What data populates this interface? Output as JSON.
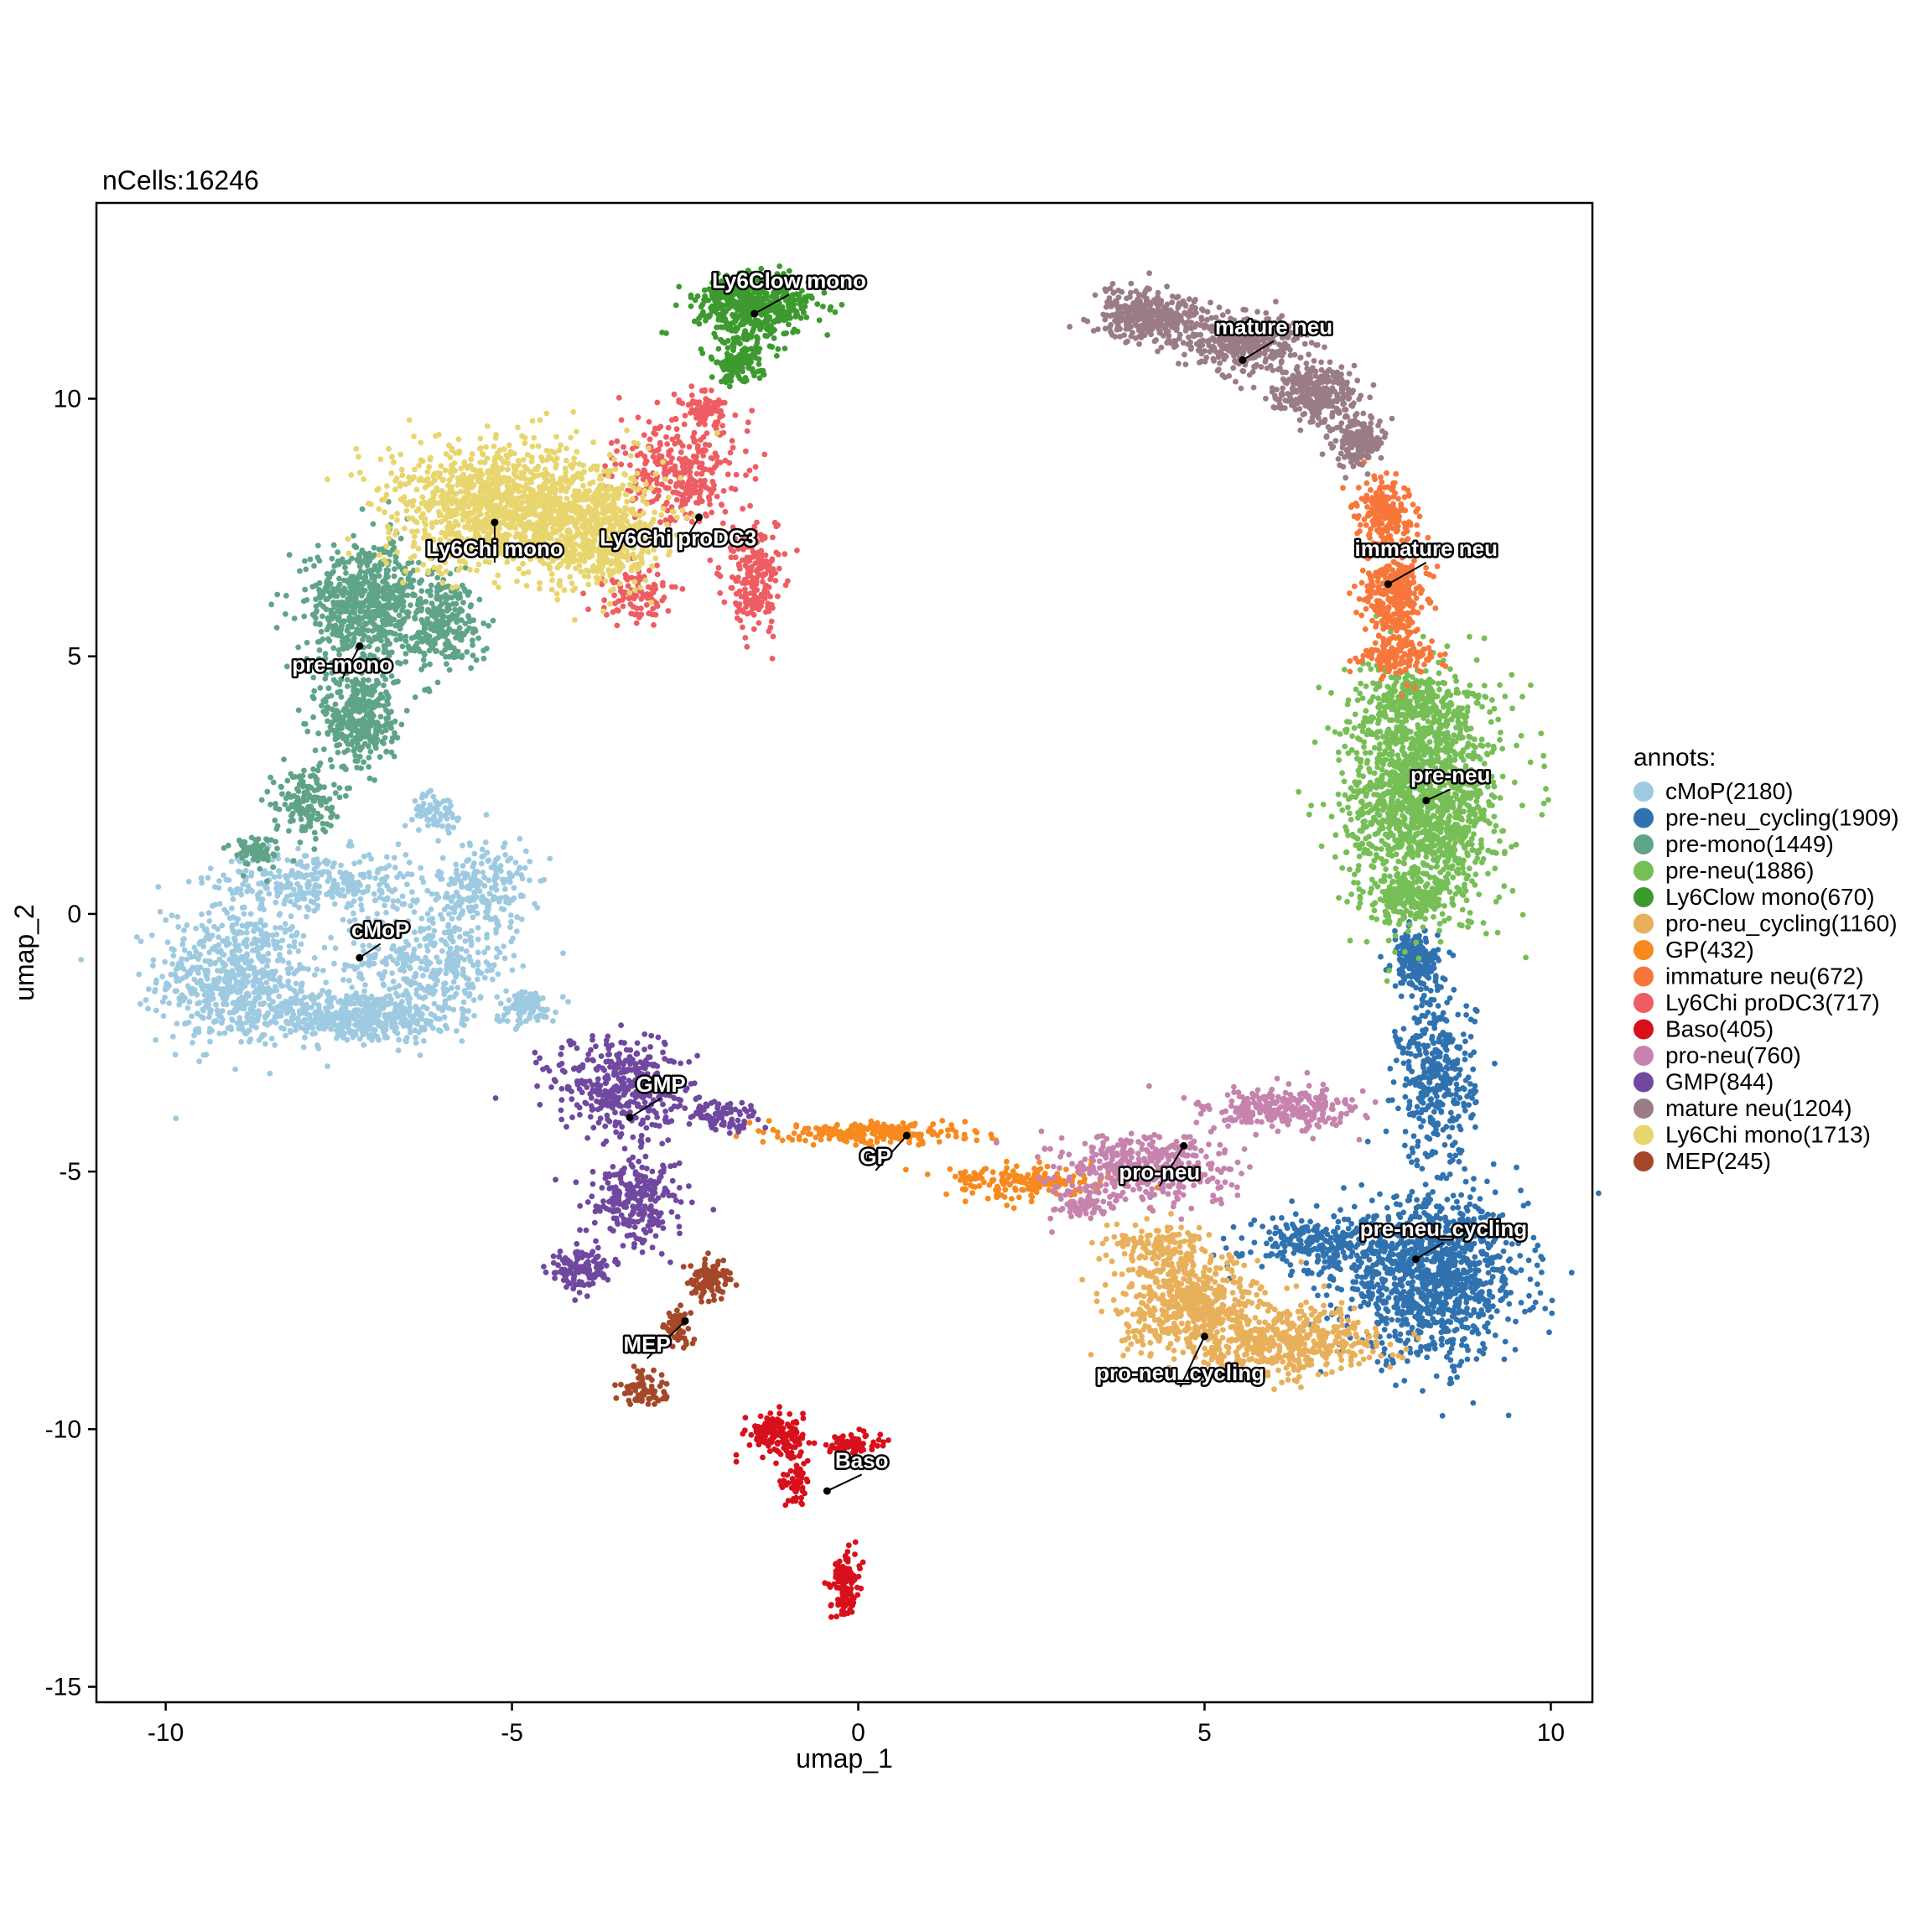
{
  "chart_data": {
    "type": "scatter",
    "title": "nCells:16246",
    "xlabel": "umap_1",
    "ylabel": "umap_2",
    "xlim": [
      -11,
      10.6
    ],
    "ylim": [
      -15.3,
      13.8
    ],
    "xticks": [
      -10,
      -5,
      0,
      5,
      10
    ],
    "yticks": [
      -15,
      -10,
      -5,
      0,
      5,
      10
    ],
    "legend": {
      "title": "annots:",
      "placement": "right"
    },
    "series": [
      {
        "key": "cMoP",
        "name": "cMoP(2180)",
        "count": 2180,
        "color": "#9ECAE1",
        "label": "cMoP",
        "center": [
          -7.2,
          -0.85
        ],
        "label_pos": [
          -6.9,
          -0.45
        ],
        "blobs": [
          {
            "cx": -9.0,
            "cy": -1.2,
            "rx": 1.0,
            "ry": 1.2,
            "w": 0.28
          },
          {
            "cx": -7.3,
            "cy": -2.0,
            "rx": 1.3,
            "ry": 0.45,
            "w": 0.22
          },
          {
            "cx": -6.2,
            "cy": -1.0,
            "rx": 1.1,
            "ry": 1.0,
            "w": 0.17
          },
          {
            "cx": -7.8,
            "cy": 0.6,
            "rx": 1.4,
            "ry": 0.55,
            "w": 0.15
          },
          {
            "cx": -5.4,
            "cy": 0.5,
            "rx": 0.6,
            "ry": 0.9,
            "w": 0.1
          },
          {
            "cx": -4.8,
            "cy": -1.8,
            "rx": 0.4,
            "ry": 0.3,
            "w": 0.05
          },
          {
            "cx": -6.1,
            "cy": 2.0,
            "rx": 0.3,
            "ry": 0.3,
            "w": 0.03
          }
        ]
      },
      {
        "key": "pre-neu_cycling",
        "name": "pre-neu_cycling(1909)",
        "count": 1909,
        "color": "#3072B0",
        "label": "pre-neu_cycling",
        "center": [
          8.05,
          -6.7
        ],
        "label_pos": [
          8.45,
          -6.25
        ],
        "blobs": [
          {
            "cx": 8.3,
            "cy": -7.1,
            "rx": 1.2,
            "ry": 1.4,
            "w": 0.55
          },
          {
            "cx": 6.8,
            "cy": -6.4,
            "rx": 1.1,
            "ry": 0.5,
            "w": 0.15
          },
          {
            "cx": 8.35,
            "cy": -3.2,
            "rx": 0.5,
            "ry": 1.5,
            "w": 0.2
          },
          {
            "cx": 8.05,
            "cy": -0.9,
            "rx": 0.3,
            "ry": 0.5,
            "w": 0.1
          }
        ]
      },
      {
        "key": "pre-mono",
        "name": "pre-mono(1449)",
        "count": 1449,
        "color": "#5FA488",
        "label": "pre-mono",
        "center": [
          -7.2,
          5.2
        ],
        "label_pos": [
          -7.45,
          4.7
        ],
        "blobs": [
          {
            "cx": -7.1,
            "cy": 6.0,
            "rx": 0.8,
            "ry": 1.1,
            "w": 0.45
          },
          {
            "cx": -7.2,
            "cy": 3.8,
            "rx": 0.5,
            "ry": 0.9,
            "w": 0.25
          },
          {
            "cx": -8.0,
            "cy": 2.2,
            "rx": 0.4,
            "ry": 0.6,
            "w": 0.1
          },
          {
            "cx": -6.0,
            "cy": 5.7,
            "rx": 0.5,
            "ry": 0.8,
            "w": 0.15
          },
          {
            "cx": -8.7,
            "cy": 1.2,
            "rx": 0.3,
            "ry": 0.3,
            "w": 0.05
          }
        ]
      },
      {
        "key": "pre-neu",
        "name": "pre-neu(1886)",
        "count": 1886,
        "color": "#76BE56",
        "label": "pre-neu",
        "center": [
          8.2,
          2.2
        ],
        "label_pos": [
          8.55,
          2.55
        ],
        "blobs": [
          {
            "cx": 8.15,
            "cy": 2.3,
            "rx": 1.0,
            "ry": 2.0,
            "w": 0.8
          },
          {
            "cx": 8.0,
            "cy": 4.2,
            "rx": 0.6,
            "ry": 0.5,
            "w": 0.1
          },
          {
            "cx": 8.0,
            "cy": 0.3,
            "rx": 0.6,
            "ry": 0.4,
            "w": 0.1
          }
        ]
      },
      {
        "key": "Ly6Clow mono",
        "name": "Ly6Clow mono(670)",
        "count": 670,
        "color": "#3D9A2F",
        "label": "Ly6Clow mono",
        "center": [
          -1.5,
          11.65
        ],
        "label_pos": [
          -1.0,
          12.15
        ],
        "blobs": [
          {
            "cx": -1.5,
            "cy": 11.8,
            "rx": 0.75,
            "ry": 0.6,
            "w": 0.8
          },
          {
            "cx": -1.75,
            "cy": 10.7,
            "rx": 0.35,
            "ry": 0.35,
            "w": 0.2
          }
        ]
      },
      {
        "key": "pro-neu_cycling",
        "name": "pro-neu_cycling(1160)",
        "count": 1160,
        "color": "#E8B05A",
        "label": "pro-neu_cycling",
        "center": [
          5.0,
          -8.2
        ],
        "label_pos": [
          4.65,
          -9.05
        ],
        "blobs": [
          {
            "cx": 4.8,
            "cy": -7.6,
            "rx": 0.9,
            "ry": 0.9,
            "w": 0.5
          },
          {
            "cx": 6.2,
            "cy": -8.3,
            "rx": 1.2,
            "ry": 0.6,
            "w": 0.4
          },
          {
            "cx": 4.3,
            "cy": -6.4,
            "rx": 0.6,
            "ry": 0.4,
            "w": 0.1
          }
        ]
      },
      {
        "key": "GP",
        "name": "GP(432)",
        "count": 432,
        "color": "#F78A1E",
        "label": "GP",
        "center": [
          0.7,
          -4.3
        ],
        "label_pos": [
          0.25,
          -4.85
        ],
        "blobs": [
          {
            "cx": 0.3,
            "cy": -4.25,
            "rx": 1.2,
            "ry": 0.18,
            "w": 0.55
          },
          {
            "cx": 2.5,
            "cy": -5.2,
            "rx": 1.1,
            "ry": 0.3,
            "w": 0.45
          }
        ]
      },
      {
        "key": "immature neu",
        "name": "immature neu(672)",
        "count": 672,
        "color": "#F7773B",
        "label": "immature neu",
        "center": [
          7.65,
          6.4
        ],
        "label_pos": [
          8.2,
          6.95
        ],
        "blobs": [
          {
            "cx": 7.6,
            "cy": 7.8,
            "rx": 0.35,
            "ry": 0.6,
            "w": 0.3
          },
          {
            "cx": 7.75,
            "cy": 6.2,
            "rx": 0.4,
            "ry": 0.9,
            "w": 0.5
          },
          {
            "cx": 7.8,
            "cy": 5.0,
            "rx": 0.5,
            "ry": 0.3,
            "w": 0.2
          }
        ]
      },
      {
        "key": "Ly6Chi proDC3",
        "name": "Ly6Chi proDC3(717)",
        "count": 717,
        "color": "#EE5D62",
        "label": "Ly6Chi proDC3",
        "center": [
          -2.3,
          7.7
        ],
        "label_pos": [
          -2.6,
          7.15
        ],
        "blobs": [
          {
            "cx": -2.6,
            "cy": 8.6,
            "rx": 0.8,
            "ry": 0.9,
            "w": 0.45
          },
          {
            "cx": -1.5,
            "cy": 6.5,
            "rx": 0.4,
            "ry": 0.9,
            "w": 0.3
          },
          {
            "cx": -3.2,
            "cy": 6.2,
            "rx": 0.4,
            "ry": 0.5,
            "w": 0.15
          },
          {
            "cx": -2.2,
            "cy": 9.8,
            "rx": 0.3,
            "ry": 0.3,
            "w": 0.1
          }
        ]
      },
      {
        "key": "Baso",
        "name": "Baso(405)",
        "count": 405,
        "color": "#D7101C",
        "label": "Baso",
        "center": [
          -0.45,
          -11.2
        ],
        "label_pos": [
          0.05,
          -10.75
        ],
        "blobs": [
          {
            "cx": -1.2,
            "cy": -10.1,
            "rx": 0.4,
            "ry": 0.35,
            "w": 0.35
          },
          {
            "cx": -0.1,
            "cy": -10.3,
            "rx": 0.35,
            "ry": 0.2,
            "w": 0.2
          },
          {
            "cx": -0.2,
            "cy": -13.0,
            "rx": 0.18,
            "ry": 0.55,
            "w": 0.3
          },
          {
            "cx": -0.9,
            "cy": -11.0,
            "rx": 0.2,
            "ry": 0.5,
            "w": 0.15
          }
        ]
      },
      {
        "key": "pro-neu",
        "name": "pro-neu(760)",
        "count": 760,
        "color": "#C583AE",
        "label": "pro-neu",
        "center": [
          4.7,
          -4.5
        ],
        "label_pos": [
          4.35,
          -5.15
        ],
        "blobs": [
          {
            "cx": 4.2,
            "cy": -4.9,
            "rx": 1.1,
            "ry": 0.6,
            "w": 0.55
          },
          {
            "cx": 6.1,
            "cy": -3.8,
            "rx": 1.0,
            "ry": 0.4,
            "w": 0.35
          },
          {
            "cx": 3.2,
            "cy": -5.7,
            "rx": 0.4,
            "ry": 0.3,
            "w": 0.1
          }
        ]
      },
      {
        "key": "GMP",
        "name": "GMP(844)",
        "count": 844,
        "color": "#7048A0",
        "label": "GMP",
        "center": [
          -3.3,
          -3.95
        ],
        "label_pos": [
          -2.85,
          -3.45
        ],
        "blobs": [
          {
            "cx": -3.4,
            "cy": -3.4,
            "rx": 0.9,
            "ry": 0.9,
            "w": 0.45
          },
          {
            "cx": -3.2,
            "cy": -5.6,
            "rx": 0.6,
            "ry": 0.8,
            "w": 0.3
          },
          {
            "cx": -4.0,
            "cy": -6.9,
            "rx": 0.4,
            "ry": 0.4,
            "w": 0.15
          },
          {
            "cx": -2.0,
            "cy": -3.9,
            "rx": 0.5,
            "ry": 0.3,
            "w": 0.1
          }
        ]
      },
      {
        "key": "mature neu",
        "name": "mature neu(1204)",
        "count": 1204,
        "color": "#9A7D84",
        "label": "mature neu",
        "center": [
          5.55,
          10.75
        ],
        "label_pos": [
          6.0,
          11.25
        ],
        "blobs": [
          {
            "cx": 4.2,
            "cy": 11.6,
            "rx": 0.7,
            "ry": 0.45,
            "w": 0.3
          },
          {
            "cx": 5.6,
            "cy": 11.1,
            "rx": 0.8,
            "ry": 0.5,
            "w": 0.3
          },
          {
            "cx": 6.6,
            "cy": 10.1,
            "rx": 0.55,
            "ry": 0.45,
            "w": 0.25
          },
          {
            "cx": 7.2,
            "cy": 9.2,
            "rx": 0.35,
            "ry": 0.45,
            "w": 0.15
          }
        ]
      },
      {
        "key": "Ly6Chi mono",
        "name": "Ly6Chi mono(1713)",
        "count": 1713,
        "color": "#E8D56D",
        "label": "Ly6Chi mono",
        "center": [
          -5.25,
          7.6
        ],
        "label_pos": [
          -5.25,
          6.95
        ],
        "blobs": [
          {
            "cx": -5.0,
            "cy": 7.9,
            "rx": 1.6,
            "ry": 1.1,
            "w": 0.75
          },
          {
            "cx": -3.7,
            "cy": 7.3,
            "rx": 0.7,
            "ry": 0.9,
            "w": 0.25
          }
        ]
      },
      {
        "key": "MEP",
        "name": "MEP(245)",
        "count": 245,
        "color": "#A5482A",
        "label": "MEP",
        "center": [
          -2.5,
          -7.9
        ],
        "label_pos": [
          -3.05,
          -8.5
        ],
        "blobs": [
          {
            "cx": -2.15,
            "cy": -7.1,
            "rx": 0.3,
            "ry": 0.35,
            "w": 0.45
          },
          {
            "cx": -2.6,
            "cy": -8.0,
            "rx": 0.2,
            "ry": 0.3,
            "w": 0.25
          },
          {
            "cx": -3.05,
            "cy": -9.2,
            "rx": 0.3,
            "ry": 0.3,
            "w": 0.3
          }
        ]
      }
    ]
  }
}
